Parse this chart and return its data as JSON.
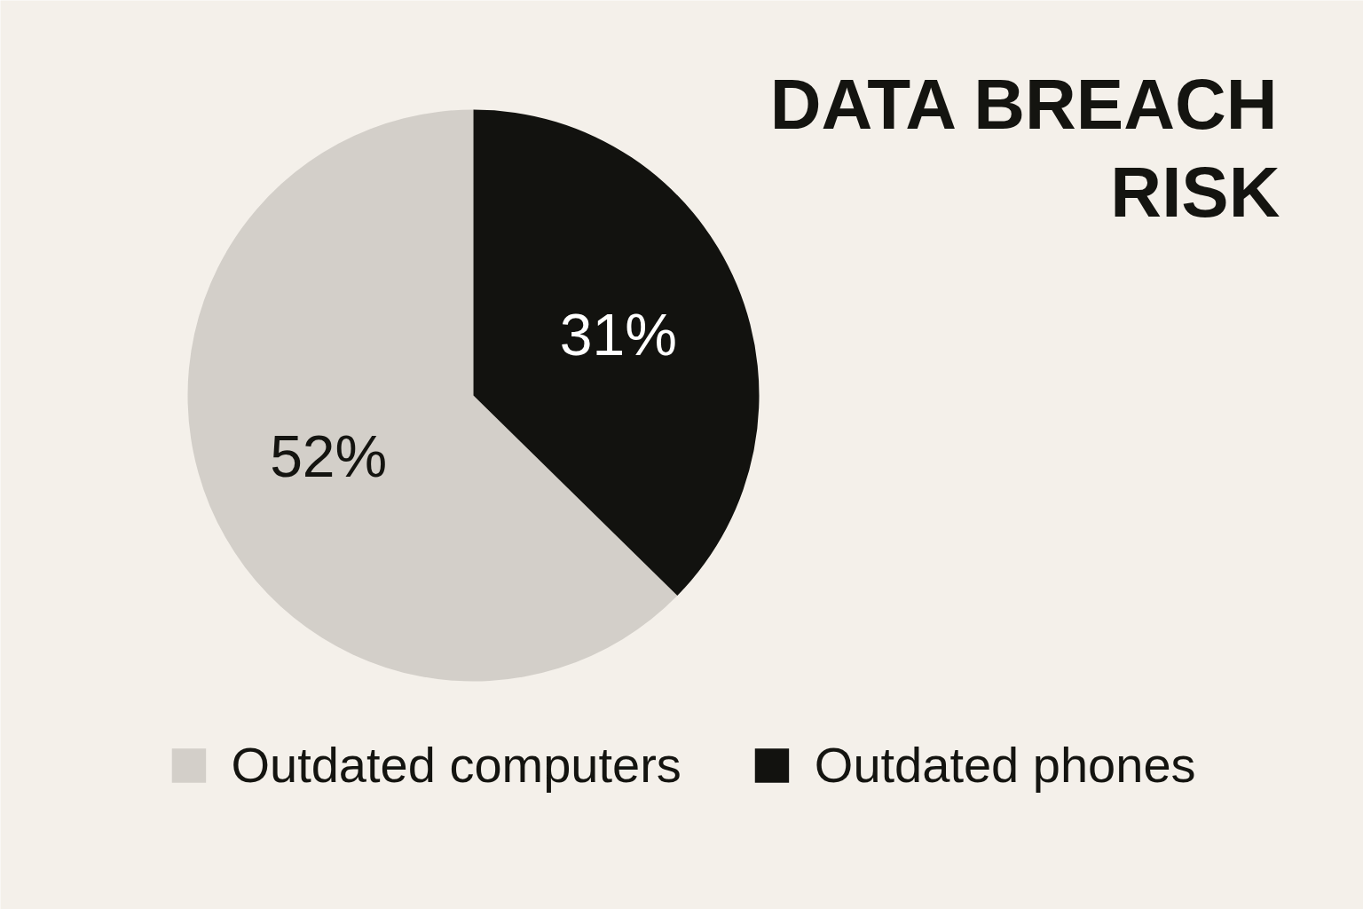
{
  "chart_data": {
    "type": "pie",
    "title": "DATA BREACH RISK",
    "categories": [
      "Outdated computers",
      "Outdated phones"
    ],
    "values": [
      52,
      31
    ],
    "colors": [
      "#d3cfc9",
      "#12120f"
    ],
    "value_labels": [
      "52%",
      "31%"
    ],
    "legend": "bottom"
  }
}
